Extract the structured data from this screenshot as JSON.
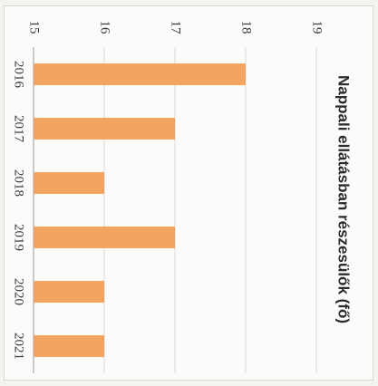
{
  "chart_data": {
    "type": "bar",
    "title": "Nappali ellátásban részesülők (fő)",
    "categories": [
      "2016",
      "2017",
      "2018",
      "2019",
      "2020",
      "2021"
    ],
    "values": [
      18,
      17,
      16,
      17,
      16,
      16
    ],
    "ylim": [
      15,
      19
    ],
    "yticks": [
      15,
      16,
      17,
      18,
      19
    ],
    "grid": true,
    "bar_color": "#f4a460"
  }
}
